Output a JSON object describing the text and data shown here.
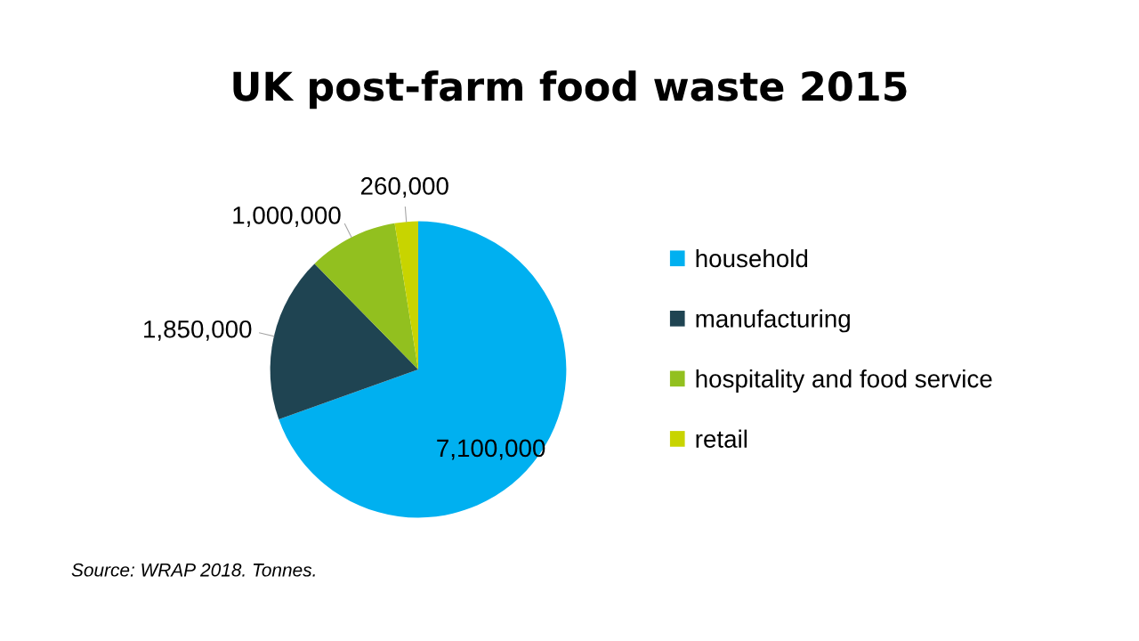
{
  "chart_data": {
    "type": "pie",
    "title": "UK post-farm food waste 2015",
    "categories": [
      "household",
      "manufacturing",
      "hospitality and food service",
      "retail"
    ],
    "values": [
      7100000,
      1850000,
      1000000,
      260000
    ],
    "colors": [
      "#00b0f0",
      "#1f4452",
      "#92c01f",
      "#c8d400"
    ],
    "value_labels": [
      "7,100,000",
      "1,850,000",
      "1,000,000",
      "260,000"
    ],
    "legend": "right",
    "annotations": [
      "Source: WRAP 2018. Tonnes."
    ]
  }
}
